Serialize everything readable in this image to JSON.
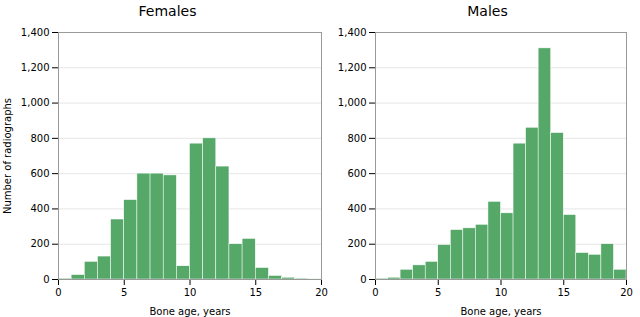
{
  "chart_data": [
    {
      "type": "histogram",
      "title": "Females",
      "xlabel": "Bone age, years",
      "ylabel": "Number of radiographs",
      "bins": [
        0,
        1,
        2,
        3,
        4,
        5,
        6,
        7,
        8,
        9,
        10,
        11,
        12,
        13,
        14,
        15,
        16,
        17,
        18,
        19,
        20
      ],
      "values": [
        5,
        25,
        100,
        130,
        340,
        450,
        600,
        600,
        590,
        75,
        770,
        800,
        640,
        200,
        230,
        65,
        20,
        10,
        5,
        2
      ],
      "color": "#55a868",
      "xlim": [
        0,
        20
      ],
      "xticks": [
        0,
        5,
        10,
        15,
        20
      ],
      "ylim": [
        0,
        1400
      ],
      "yticks": [
        0,
        200,
        400,
        600,
        800,
        1000,
        1200,
        1400
      ],
      "grid": true
    },
    {
      "type": "histogram",
      "title": "Males",
      "xlabel": "Bone age, years",
      "bins": [
        0,
        1,
        2,
        3,
        4,
        5,
        6,
        7,
        8,
        9,
        10,
        11,
        12,
        13,
        14,
        15,
        16,
        17,
        18,
        19,
        20
      ],
      "values": [
        5,
        10,
        55,
        80,
        100,
        195,
        280,
        290,
        310,
        440,
        375,
        770,
        860,
        1310,
        830,
        365,
        150,
        140,
        200,
        55
      ],
      "color": "#55a868",
      "xlim": [
        0,
        20
      ],
      "xticks": [
        0,
        5,
        10,
        15,
        20
      ],
      "ylim": [
        0,
        1400
      ],
      "yticks": [
        0,
        200,
        400,
        600,
        800,
        1000,
        1200,
        1400
      ],
      "grid": true
    }
  ]
}
